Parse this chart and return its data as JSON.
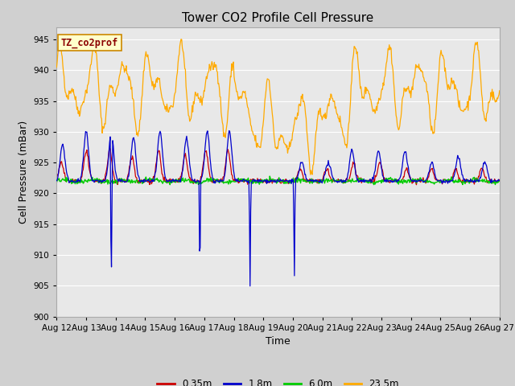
{
  "title": "Tower CO2 Profile Cell Pressure",
  "xlabel": "Time",
  "ylabel": "Cell Pressure (mBar)",
  "ylim": [
    900,
    947
  ],
  "yticks": [
    900,
    905,
    910,
    915,
    920,
    925,
    930,
    935,
    940,
    945
  ],
  "fig_bg_color": "#d0d0d0",
  "plot_bg_color": "#e8e8e8",
  "grid_color": "#ffffff",
  "legend_label": "TZ_co2prof",
  "legend_bg": "#ffffcc",
  "legend_border": "#cc8800",
  "series_colors": {
    "0.35m": "#cc0000",
    "1.8m": "#0000cc",
    "6.0m": "#00cc00",
    "23.5m": "#ffaa00"
  },
  "x_labels": [
    "Aug 12",
    "Aug 13",
    "Aug 14",
    "Aug 15",
    "Aug 16",
    "Aug 17",
    "Aug 18",
    "Aug 19",
    "Aug 20",
    "Aug 21",
    "Aug 22",
    "Aug 23",
    "Aug 24",
    "Aug 25",
    "Aug 26",
    "Aug 27"
  ],
  "title_fontsize": 11,
  "axis_label_fontsize": 9,
  "tick_fontsize": 7.5
}
